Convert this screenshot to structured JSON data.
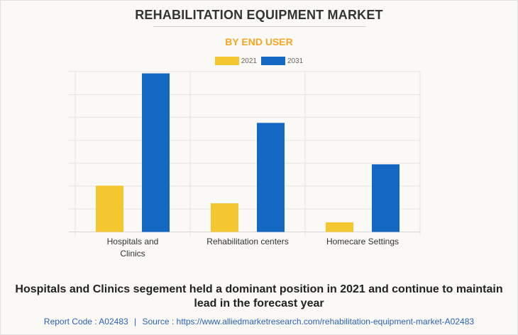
{
  "title": "REHABILITATION EQUIPMENT MARKET",
  "subtitle": "BY END USER",
  "chart_data": {
    "type": "bar",
    "categories": [
      "Hospitals and Clinics",
      "Rehabilitation centers",
      "Homecare Settings"
    ],
    "category_lines": [
      [
        "Hospitals and",
        "Clinics"
      ],
      [
        "Rehabilitation centers"
      ],
      [
        "Homecare Settings"
      ]
    ],
    "series": [
      {
        "name": "2021",
        "color": "#f4c62f",
        "values": [
          2.02,
          1.25,
          0.42
        ]
      },
      {
        "name": "2031",
        "color": "#1467c2",
        "values": [
          6.92,
          4.76,
          2.95
        ]
      }
    ],
    "ylim": [
      0,
      7
    ],
    "y_gridlines": 7,
    "y_tick_labels_shown": false,
    "grid": true,
    "legend": "top-center"
  },
  "caption": "Hospitals and Clinics segement held a dominant position in 2021 and continue to maintain lead in the forecast year",
  "footer": {
    "report_code_label": "Report Code : A02483",
    "separator": "|",
    "source_label": "Source : https://www.alliedmarketresearch.com/rehabilitation-equipment-market-A02483"
  }
}
